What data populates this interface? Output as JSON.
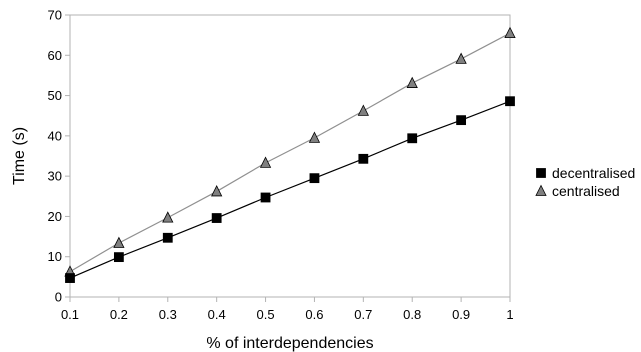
{
  "chart_data": {
    "type": "line",
    "xlabel": "% of interdependencies",
    "ylabel": "Time (s)",
    "x": [
      0.1,
      0.2,
      0.3,
      0.4,
      0.5,
      0.6,
      0.7,
      0.8,
      0.9,
      1
    ],
    "x_tick_labels": [
      "0.1",
      "0.2",
      "0.3",
      "0.4",
      "0.5",
      "0.6",
      "0.7",
      "0.8",
      "0.9",
      "1"
    ],
    "xlim": [
      0.1,
      1
    ],
    "ylim": [
      0,
      70
    ],
    "y_ticks": [
      0,
      10,
      20,
      30,
      40,
      50,
      60,
      70
    ],
    "grid": false,
    "legend_position": "right",
    "series": [
      {
        "name": "decentralised",
        "marker": "square",
        "color": "#000000",
        "line_color": "#000000",
        "values": [
          4.7,
          9.9,
          14.7,
          19.6,
          24.7,
          29.5,
          34.3,
          39.4,
          43.9,
          48.6
        ]
      },
      {
        "name": "centralised",
        "marker": "triangle",
        "color": "#808080",
        "line_color": "#909090",
        "values": [
          6.3,
          13.4,
          19.7,
          26.2,
          33.3,
          39.5,
          46.2,
          53.1,
          59.1,
          65.5
        ]
      }
    ]
  }
}
